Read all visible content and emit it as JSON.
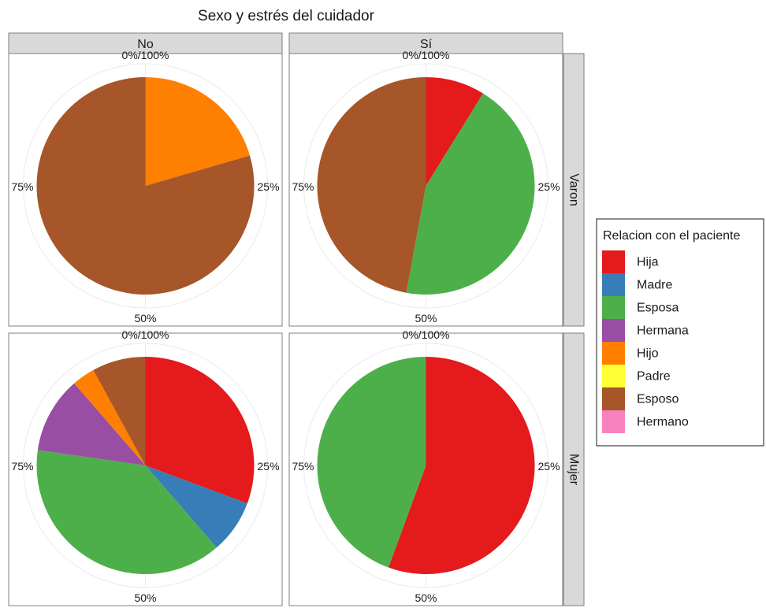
{
  "chart_data": {
    "type": "pie",
    "title": "Sexo y estrés del cuidador",
    "facet_columns": [
      "No",
      "Sí"
    ],
    "facet_rows": [
      "Varon",
      "Mujer"
    ],
    "polar_labels": [
      "0%/100%",
      "25%",
      "50%",
      "75%"
    ],
    "legend": {
      "title": "Relacion con el paciente",
      "position": "right",
      "entries": [
        {
          "name": "Hija",
          "color": "#e41a1c"
        },
        {
          "name": "Madre",
          "color": "#377eb8"
        },
        {
          "name": "Esposa",
          "color": "#4daf4a"
        },
        {
          "name": "Hermana",
          "color": "#984ea3"
        },
        {
          "name": "Hijo",
          "color": "#ff7f00"
        },
        {
          "name": "Padre",
          "color": "#ffff33"
        },
        {
          "name": "Esposo",
          "color": "#a65628"
        },
        {
          "name": "Hermano",
          "color": "#f781bf"
        }
      ]
    },
    "panels": [
      {
        "row": "Varon",
        "col": "No",
        "slices": [
          {
            "category": "Hijo",
            "value": 0.205
          },
          {
            "category": "Esposo",
            "value": 0.795
          }
        ]
      },
      {
        "row": "Varon",
        "col": "Sí",
        "slices": [
          {
            "category": "Hija",
            "value": 0.088
          },
          {
            "category": "Esposa",
            "value": 0.441
          },
          {
            "category": "Esposo",
            "value": 0.471
          }
        ]
      },
      {
        "row": "Mujer",
        "col": "No",
        "slices": [
          {
            "category": "Hija",
            "value": 0.297
          },
          {
            "category": "Madre",
            "value": 0.077
          },
          {
            "category": "Esposa",
            "value": 0.374
          },
          {
            "category": "Hermana",
            "value": 0.11
          },
          {
            "category": "Hijo",
            "value": 0.033
          },
          {
            "category": "Esposo",
            "value": 0.077
          }
        ]
      },
      {
        "row": "Mujer",
        "col": "Sí",
        "slices": [
          {
            "category": "Hija",
            "value": 0.556
          },
          {
            "category": "Esposa",
            "value": 0.444
          }
        ]
      }
    ]
  }
}
